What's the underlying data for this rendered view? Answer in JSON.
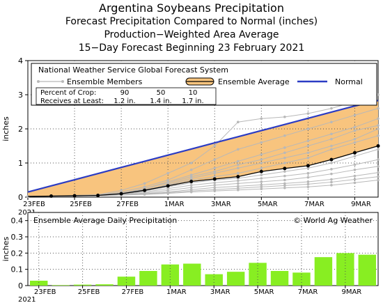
{
  "titles": [
    "Argentina Soybeans Precipitation",
    "Forecast Precipitation Compared to Normal (inches)",
    "Production−Weighted Area Average",
    "15−Day Forecast Beginning 23 February 2021"
  ],
  "colors": {
    "normal": "#2b3cc4",
    "ensemble_fill": "#f8c47e",
    "ensemble_avg": "#000000",
    "members": "#b8b8b8",
    "bars": "#88ee22",
    "legend_swatch_fill": "#88ee22"
  },
  "chart_data": [
    {
      "type": "line",
      "ylabel": "inches",
      "ylim": [
        0,
        4
      ],
      "yticks": [
        "0",
        "1",
        "2",
        "3",
        "4"
      ],
      "x_tick_labels": [
        "23FEB",
        "25FEB",
        "27FEB",
        "1MAR",
        "3MAR",
        "5MAR",
        "7MAR",
        "9MAR"
      ],
      "x_year_label": "2021",
      "grid": true,
      "legend_title": "National Weather Service Global Forecast System",
      "legend": {
        "members": "Ensemble Members",
        "average": "Ensemble Average",
        "normal": "Normal"
      },
      "crop_table": {
        "row1_label": "Percent of Crop:",
        "row1_values": [
          "90",
          "50",
          "10"
        ],
        "row2_label": "Receives at Least:",
        "row2_values": [
          "1.2 in.",
          "1.4 in.",
          "1.7 in."
        ]
      },
      "x": [
        0,
        1,
        2,
        3,
        4,
        5,
        6,
        7,
        8,
        9,
        10,
        11,
        12,
        13,
        14,
        15
      ],
      "series": [
        {
          "name": "Normal",
          "values": [
            0.15,
            0.33,
            0.51,
            0.69,
            0.87,
            1.05,
            1.23,
            1.41,
            1.59,
            1.77,
            1.95,
            2.13,
            2.31,
            2.49,
            2.67,
            2.83
          ]
        },
        {
          "name": "Ensemble Average",
          "values": [
            0.02,
            0.03,
            0.04,
            0.05,
            0.1,
            0.2,
            0.33,
            0.46,
            0.53,
            0.6,
            0.75,
            0.84,
            0.92,
            1.1,
            1.3,
            1.5
          ]
        }
      ],
      "members": [
        [
          0.02,
          0.03,
          0.05,
          0.07,
          0.2,
          0.4,
          0.7,
          1.0,
          1.5,
          2.2,
          2.3,
          2.35,
          2.45,
          2.6,
          2.8,
          3.0
        ],
        [
          0.02,
          0.03,
          0.04,
          0.06,
          0.15,
          0.3,
          0.5,
          0.8,
          1.1,
          1.4,
          1.6,
          1.8,
          2.0,
          2.2,
          2.4,
          2.6
        ],
        [
          0.02,
          0.03,
          0.04,
          0.05,
          0.12,
          0.25,
          0.42,
          0.6,
          0.75,
          0.95,
          1.1,
          1.3,
          1.5,
          1.7,
          1.95,
          2.1
        ],
        [
          0.02,
          0.03,
          0.04,
          0.05,
          0.1,
          0.22,
          0.35,
          0.5,
          0.6,
          0.7,
          0.85,
          1.0,
          1.15,
          1.4,
          1.6,
          1.8
        ],
        [
          0.02,
          0.03,
          0.04,
          0.05,
          0.09,
          0.18,
          0.3,
          0.42,
          0.5,
          0.55,
          0.65,
          0.75,
          0.85,
          1.0,
          1.2,
          1.4
        ],
        [
          0.02,
          0.03,
          0.04,
          0.05,
          0.08,
          0.15,
          0.25,
          0.35,
          0.42,
          0.48,
          0.55,
          0.62,
          0.7,
          0.82,
          0.95,
          1.1
        ],
        [
          0.02,
          0.03,
          0.04,
          0.05,
          0.07,
          0.12,
          0.2,
          0.28,
          0.35,
          0.4,
          0.45,
          0.5,
          0.58,
          0.68,
          0.8,
          0.9
        ],
        [
          0.02,
          0.03,
          0.04,
          0.05,
          0.06,
          0.1,
          0.15,
          0.22,
          0.28,
          0.32,
          0.36,
          0.4,
          0.45,
          0.52,
          0.62,
          0.72
        ],
        [
          0.02,
          0.03,
          0.04,
          0.05,
          0.06,
          0.09,
          0.13,
          0.18,
          0.22,
          0.26,
          0.3,
          0.34,
          0.38,
          0.44,
          0.52,
          0.6
        ],
        [
          0.02,
          0.03,
          0.04,
          0.05,
          0.06,
          0.08,
          0.11,
          0.15,
          0.18,
          0.21,
          0.24,
          0.27,
          0.3,
          0.35,
          0.42,
          0.5
        ],
        [
          0.02,
          0.03,
          0.04,
          0.05,
          0.08,
          0.18,
          0.38,
          0.55,
          0.7,
          0.85,
          1.0,
          1.15,
          1.3,
          1.5,
          1.7,
          2.0
        ],
        [
          0.02,
          0.03,
          0.04,
          0.05,
          0.1,
          0.25,
          0.45,
          0.65,
          0.85,
          1.05,
          1.25,
          1.45,
          1.65,
          1.85,
          2.05,
          2.3
        ]
      ]
    },
    {
      "type": "bar",
      "title": "Ensemble Average Daily Precipitation",
      "annotation": "© World Ag Weather",
      "ylabel": "inches",
      "ylim": [
        0,
        0.45
      ],
      "yticks": [
        "0",
        "0.1",
        "0.2",
        "0.3",
        "0.4"
      ],
      "x_tick_labels": [
        "23FEB",
        "25FEB",
        "27FEB",
        "1MAR",
        "3MAR",
        "5MAR",
        "7MAR",
        "9MAR"
      ],
      "x_year_label": "2021",
      "grid": true,
      "values": [
        0.03,
        0.003,
        0.006,
        0.008,
        0.055,
        0.09,
        0.13,
        0.135,
        0.07,
        0.085,
        0.14,
        0.09,
        0.08,
        0.175,
        0.2,
        0.19
      ]
    }
  ]
}
